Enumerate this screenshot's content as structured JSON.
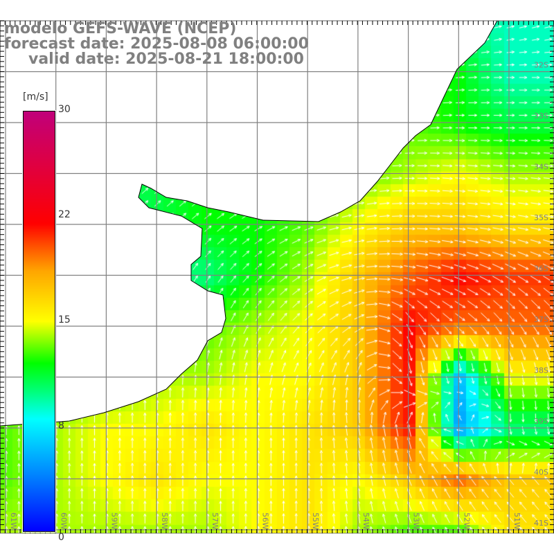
{
  "title": {
    "line1": "modelo GEFS-WAVE (NCEP)",
    "line2": "forecast date: 2025-08-08 06:00:00",
    "line3": "valid date: 2025-08-21 18:00:00"
  },
  "colorbar": {
    "unit": "[m/s]",
    "labels": [
      "30",
      "22",
      "15",
      "8",
      "0"
    ],
    "values": [
      30,
      22,
      15,
      8,
      0
    ],
    "min": 0,
    "max": 30
  },
  "axes": {
    "lon_labels": [
      "61W",
      "60W",
      "59W",
      "58W",
      "57W",
      "56W",
      "55W",
      "54W",
      "53W",
      "52W",
      "51W"
    ],
    "lat_labels": [
      "32S",
      "33S",
      "34S",
      "35S",
      "36S",
      "37S",
      "38S",
      "39S",
      "40S",
      "41S"
    ]
  },
  "colors": {
    "arrow": "#ffffff",
    "grid": "#808080",
    "coast": "#000000",
    "title": "#808080"
  },
  "chart_data": {
    "type": "heatmap",
    "variable": "wind speed [m/s] with direction arrows",
    "lons": [
      -61,
      -60,
      -59,
      -58,
      -57,
      -56,
      -55,
      -54,
      -53,
      -52,
      -51
    ],
    "lats": [
      -31,
      -32,
      -33,
      -34,
      -35,
      -36,
      -37,
      -38,
      -39,
      -40,
      -41
    ],
    "speed": [
      [
        12,
        12,
        12,
        12,
        12,
        12,
        12,
        12,
        11,
        10,
        9
      ],
      [
        12,
        12,
        12,
        12,
        12,
        12,
        12,
        12,
        12,
        12,
        9
      ],
      [
        12,
        12,
        12,
        12,
        12,
        12,
        13,
        13,
        13,
        12,
        11
      ],
      [
        11,
        11,
        11,
        11,
        12,
        12,
        13,
        13,
        14,
        15,
        14
      ],
      [
        10,
        10,
        10,
        11,
        12,
        12,
        13,
        15,
        17,
        17,
        16
      ],
      [
        10,
        10,
        10,
        10,
        10,
        12,
        14,
        17,
        20,
        22,
        21
      ],
      [
        12,
        12,
        12,
        12,
        13,
        14,
        15,
        17,
        22,
        20,
        20
      ],
      [
        13,
        13,
        13,
        14,
        14,
        15,
        15,
        17,
        22,
        6,
        15
      ],
      [
        13,
        14,
        15,
        15,
        16,
        15,
        16,
        17,
        22,
        5,
        10
      ],
      [
        13,
        14,
        15,
        16,
        15,
        15,
        16,
        15,
        17,
        20,
        17
      ],
      [
        14,
        14,
        14,
        14,
        14,
        15,
        16,
        14,
        13,
        13,
        16
      ]
    ],
    "direction_deg": [
      [
        20,
        20,
        20,
        20,
        20,
        20,
        20,
        20,
        15,
        15,
        15
      ],
      [
        20,
        20,
        20,
        20,
        20,
        20,
        20,
        15,
        10,
        5,
        0
      ],
      [
        30,
        30,
        30,
        30,
        30,
        25,
        20,
        10,
        5,
        0,
        0
      ],
      [
        40,
        40,
        40,
        40,
        35,
        30,
        20,
        10,
        0,
        -5,
        -5
      ],
      [
        45,
        45,
        45,
        45,
        40,
        30,
        20,
        10,
        0,
        -5,
        -10
      ],
      [
        60,
        60,
        60,
        60,
        55,
        45,
        30,
        10,
        -10,
        -20,
        -30
      ],
      [
        80,
        80,
        80,
        75,
        70,
        60,
        45,
        30,
        -60,
        -40,
        -55
      ],
      [
        90,
        90,
        90,
        90,
        85,
        80,
        70,
        80,
        -80,
        -90,
        -80
      ],
      [
        90,
        90,
        90,
        90,
        90,
        90,
        90,
        100,
        100,
        180,
        -90
      ],
      [
        90,
        90,
        90,
        90,
        90,
        90,
        90,
        95,
        110,
        125,
        130
      ],
      [
        90,
        90,
        90,
        90,
        90,
        90,
        90,
        100,
        110,
        120,
        130
      ]
    ]
  }
}
